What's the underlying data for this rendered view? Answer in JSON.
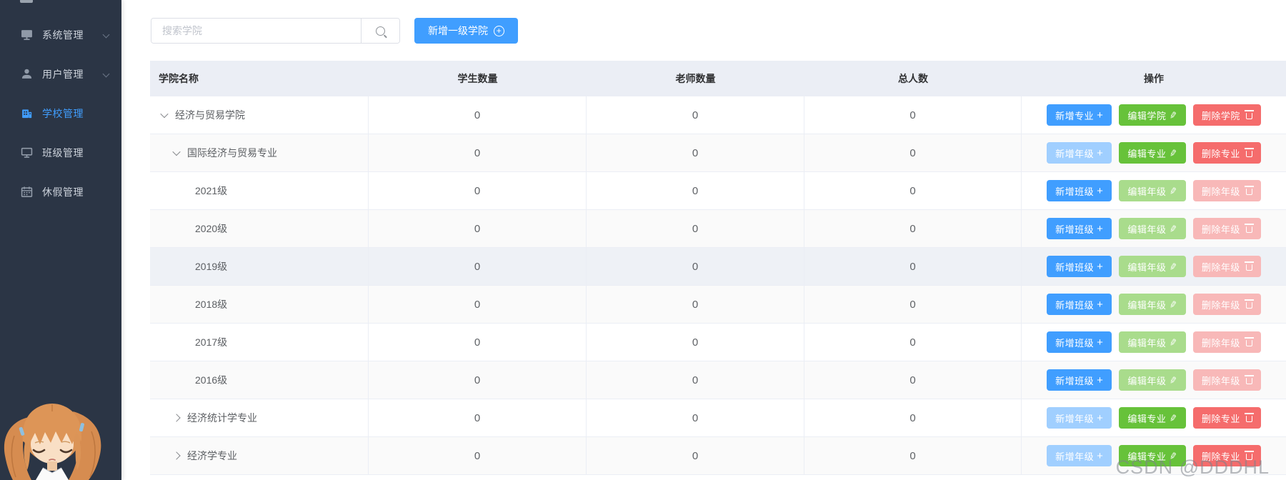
{
  "sidebar": {
    "items": [
      {
        "label": "系统管理",
        "icon": "monitor-icon",
        "arrow": true,
        "active": false
      },
      {
        "label": "用户管理",
        "icon": "user-icon",
        "arrow": true,
        "active": false
      },
      {
        "label": "学校管理",
        "icon": "school-icon",
        "arrow": false,
        "active": true
      },
      {
        "label": "班级管理",
        "icon": "display-icon",
        "arrow": false,
        "active": false
      },
      {
        "label": "休假管理",
        "icon": "calendar-icon",
        "arrow": false,
        "active": false
      }
    ]
  },
  "toolbar": {
    "search_placeholder": "搜索学院",
    "add_button_label": "新增一级学院"
  },
  "table": {
    "headers": [
      "学院名称",
      "学生数量",
      "老师数量",
      "总人数",
      "操作"
    ],
    "rows": [
      {
        "name": "经济与贸易学院",
        "level": "college",
        "expand": "down",
        "bg": "white",
        "students": "0",
        "teachers": "0",
        "total": "0",
        "actions": [
          {
            "label": "新增专业",
            "icon": "plus",
            "style": "primary"
          },
          {
            "label": "编辑学院",
            "icon": "edit",
            "style": "success"
          },
          {
            "label": "删除学院",
            "icon": "trash",
            "style": "danger"
          }
        ]
      },
      {
        "name": "国际经济与贸易专业",
        "level": "major",
        "expand": "down",
        "bg": "stripe",
        "students": "0",
        "teachers": "0",
        "total": "0",
        "actions": [
          {
            "label": "新增年级",
            "icon": "plus",
            "style": "primary-light"
          },
          {
            "label": "编辑专业",
            "icon": "edit",
            "style": "success"
          },
          {
            "label": "删除专业",
            "icon": "trash",
            "style": "danger"
          }
        ]
      },
      {
        "name": "2021级",
        "level": "grade",
        "expand": null,
        "bg": "white",
        "students": "0",
        "teachers": "0",
        "total": "0",
        "actions": [
          {
            "label": "新增班级",
            "icon": "plus",
            "style": "primary"
          },
          {
            "label": "编辑年级",
            "icon": "edit",
            "style": "success-light"
          },
          {
            "label": "删除年级",
            "icon": "trash",
            "style": "danger-light"
          }
        ]
      },
      {
        "name": "2020级",
        "level": "grade",
        "expand": null,
        "bg": "stripe",
        "students": "0",
        "teachers": "0",
        "total": "0",
        "actions": [
          {
            "label": "新增班级",
            "icon": "plus",
            "style": "primary"
          },
          {
            "label": "编辑年级",
            "icon": "edit",
            "style": "success-light"
          },
          {
            "label": "删除年级",
            "icon": "trash",
            "style": "danger-light"
          }
        ]
      },
      {
        "name": "2019级",
        "level": "grade",
        "expand": null,
        "bg": "hover",
        "students": "0",
        "teachers": "0",
        "total": "0",
        "actions": [
          {
            "label": "新增班级",
            "icon": "plus",
            "style": "primary"
          },
          {
            "label": "编辑年级",
            "icon": "edit",
            "style": "success-light"
          },
          {
            "label": "删除年级",
            "icon": "trash",
            "style": "danger-light"
          }
        ]
      },
      {
        "name": "2018级",
        "level": "grade",
        "expand": null,
        "bg": "stripe",
        "students": "0",
        "teachers": "0",
        "total": "0",
        "actions": [
          {
            "label": "新增班级",
            "icon": "plus",
            "style": "primary"
          },
          {
            "label": "编辑年级",
            "icon": "edit",
            "style": "success-light"
          },
          {
            "label": "删除年级",
            "icon": "trash",
            "style": "danger-light"
          }
        ]
      },
      {
        "name": "2017级",
        "level": "grade",
        "expand": null,
        "bg": "white",
        "students": "0",
        "teachers": "0",
        "total": "0",
        "actions": [
          {
            "label": "新增班级",
            "icon": "plus",
            "style": "primary"
          },
          {
            "label": "编辑年级",
            "icon": "edit",
            "style": "success-light"
          },
          {
            "label": "删除年级",
            "icon": "trash",
            "style": "danger-light"
          }
        ]
      },
      {
        "name": "2016级",
        "level": "grade",
        "expand": null,
        "bg": "stripe",
        "students": "0",
        "teachers": "0",
        "total": "0",
        "actions": [
          {
            "label": "新增班级",
            "icon": "plus",
            "style": "primary"
          },
          {
            "label": "编辑年级",
            "icon": "edit",
            "style": "success-light"
          },
          {
            "label": "删除年级",
            "icon": "trash",
            "style": "danger-light"
          }
        ]
      },
      {
        "name": "经济统计学专业",
        "level": "major",
        "expand": "right",
        "bg": "white",
        "students": "0",
        "teachers": "0",
        "total": "0",
        "actions": [
          {
            "label": "新增年级",
            "icon": "plus",
            "style": "primary-light"
          },
          {
            "label": "编辑专业",
            "icon": "edit",
            "style": "success"
          },
          {
            "label": "删除专业",
            "icon": "trash",
            "style": "danger"
          }
        ]
      },
      {
        "name": "经济学专业",
        "level": "major",
        "expand": "right",
        "bg": "stripe",
        "students": "0",
        "teachers": "0",
        "total": "0",
        "actions": [
          {
            "label": "新增年级",
            "icon": "plus",
            "style": "primary-light"
          },
          {
            "label": "编辑专业",
            "icon": "edit",
            "style": "success"
          },
          {
            "label": "删除专业",
            "icon": "trash",
            "style": "danger"
          }
        ]
      }
    ]
  },
  "watermark": "CSDN @DDDHL",
  "colors": {
    "primary": "#409eff",
    "primary_light": "#a0cfff",
    "success": "#67c23a",
    "success_light": "#a9dc8c",
    "danger": "#f56c6c",
    "danger_light": "#f8b8b8",
    "sidebar_bg": "#2b3545",
    "active_text": "#409eff",
    "header_bg": "#ebeef5"
  }
}
